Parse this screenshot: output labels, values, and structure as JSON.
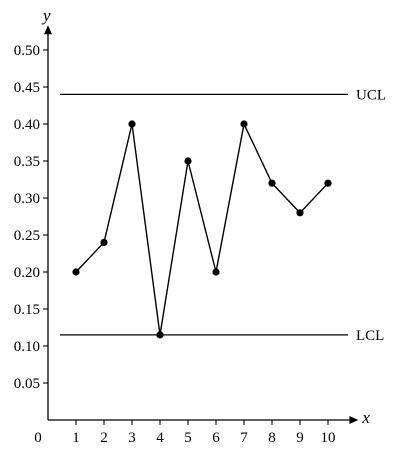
{
  "chart_data": {
    "type": "line",
    "title": "",
    "xlabel": "x",
    "ylabel": "y",
    "origin_label": "0",
    "x_ticks": [
      1,
      2,
      3,
      4,
      5,
      6,
      7,
      8,
      9,
      10
    ],
    "y_ticks": [
      "0.05",
      "0.10",
      "0.15",
      "0.20",
      "0.25",
      "0.30",
      "0.35",
      "0.40",
      "0.45",
      "0.50"
    ],
    "xlim": [
      0,
      10.8
    ],
    "ylim": [
      0,
      0.52
    ],
    "grid": false,
    "series": [
      {
        "x": [
          1,
          2,
          3,
          4,
          5,
          6,
          7,
          8,
          9,
          10
        ],
        "y": [
          0.2,
          0.24,
          0.4,
          0.115,
          0.35,
          0.2,
          0.4,
          0.32,
          0.28,
          0.32
        ]
      }
    ],
    "reference_lines": [
      {
        "label": "UCL",
        "y": 0.44
      },
      {
        "label": "LCL",
        "y": 0.115
      }
    ]
  }
}
